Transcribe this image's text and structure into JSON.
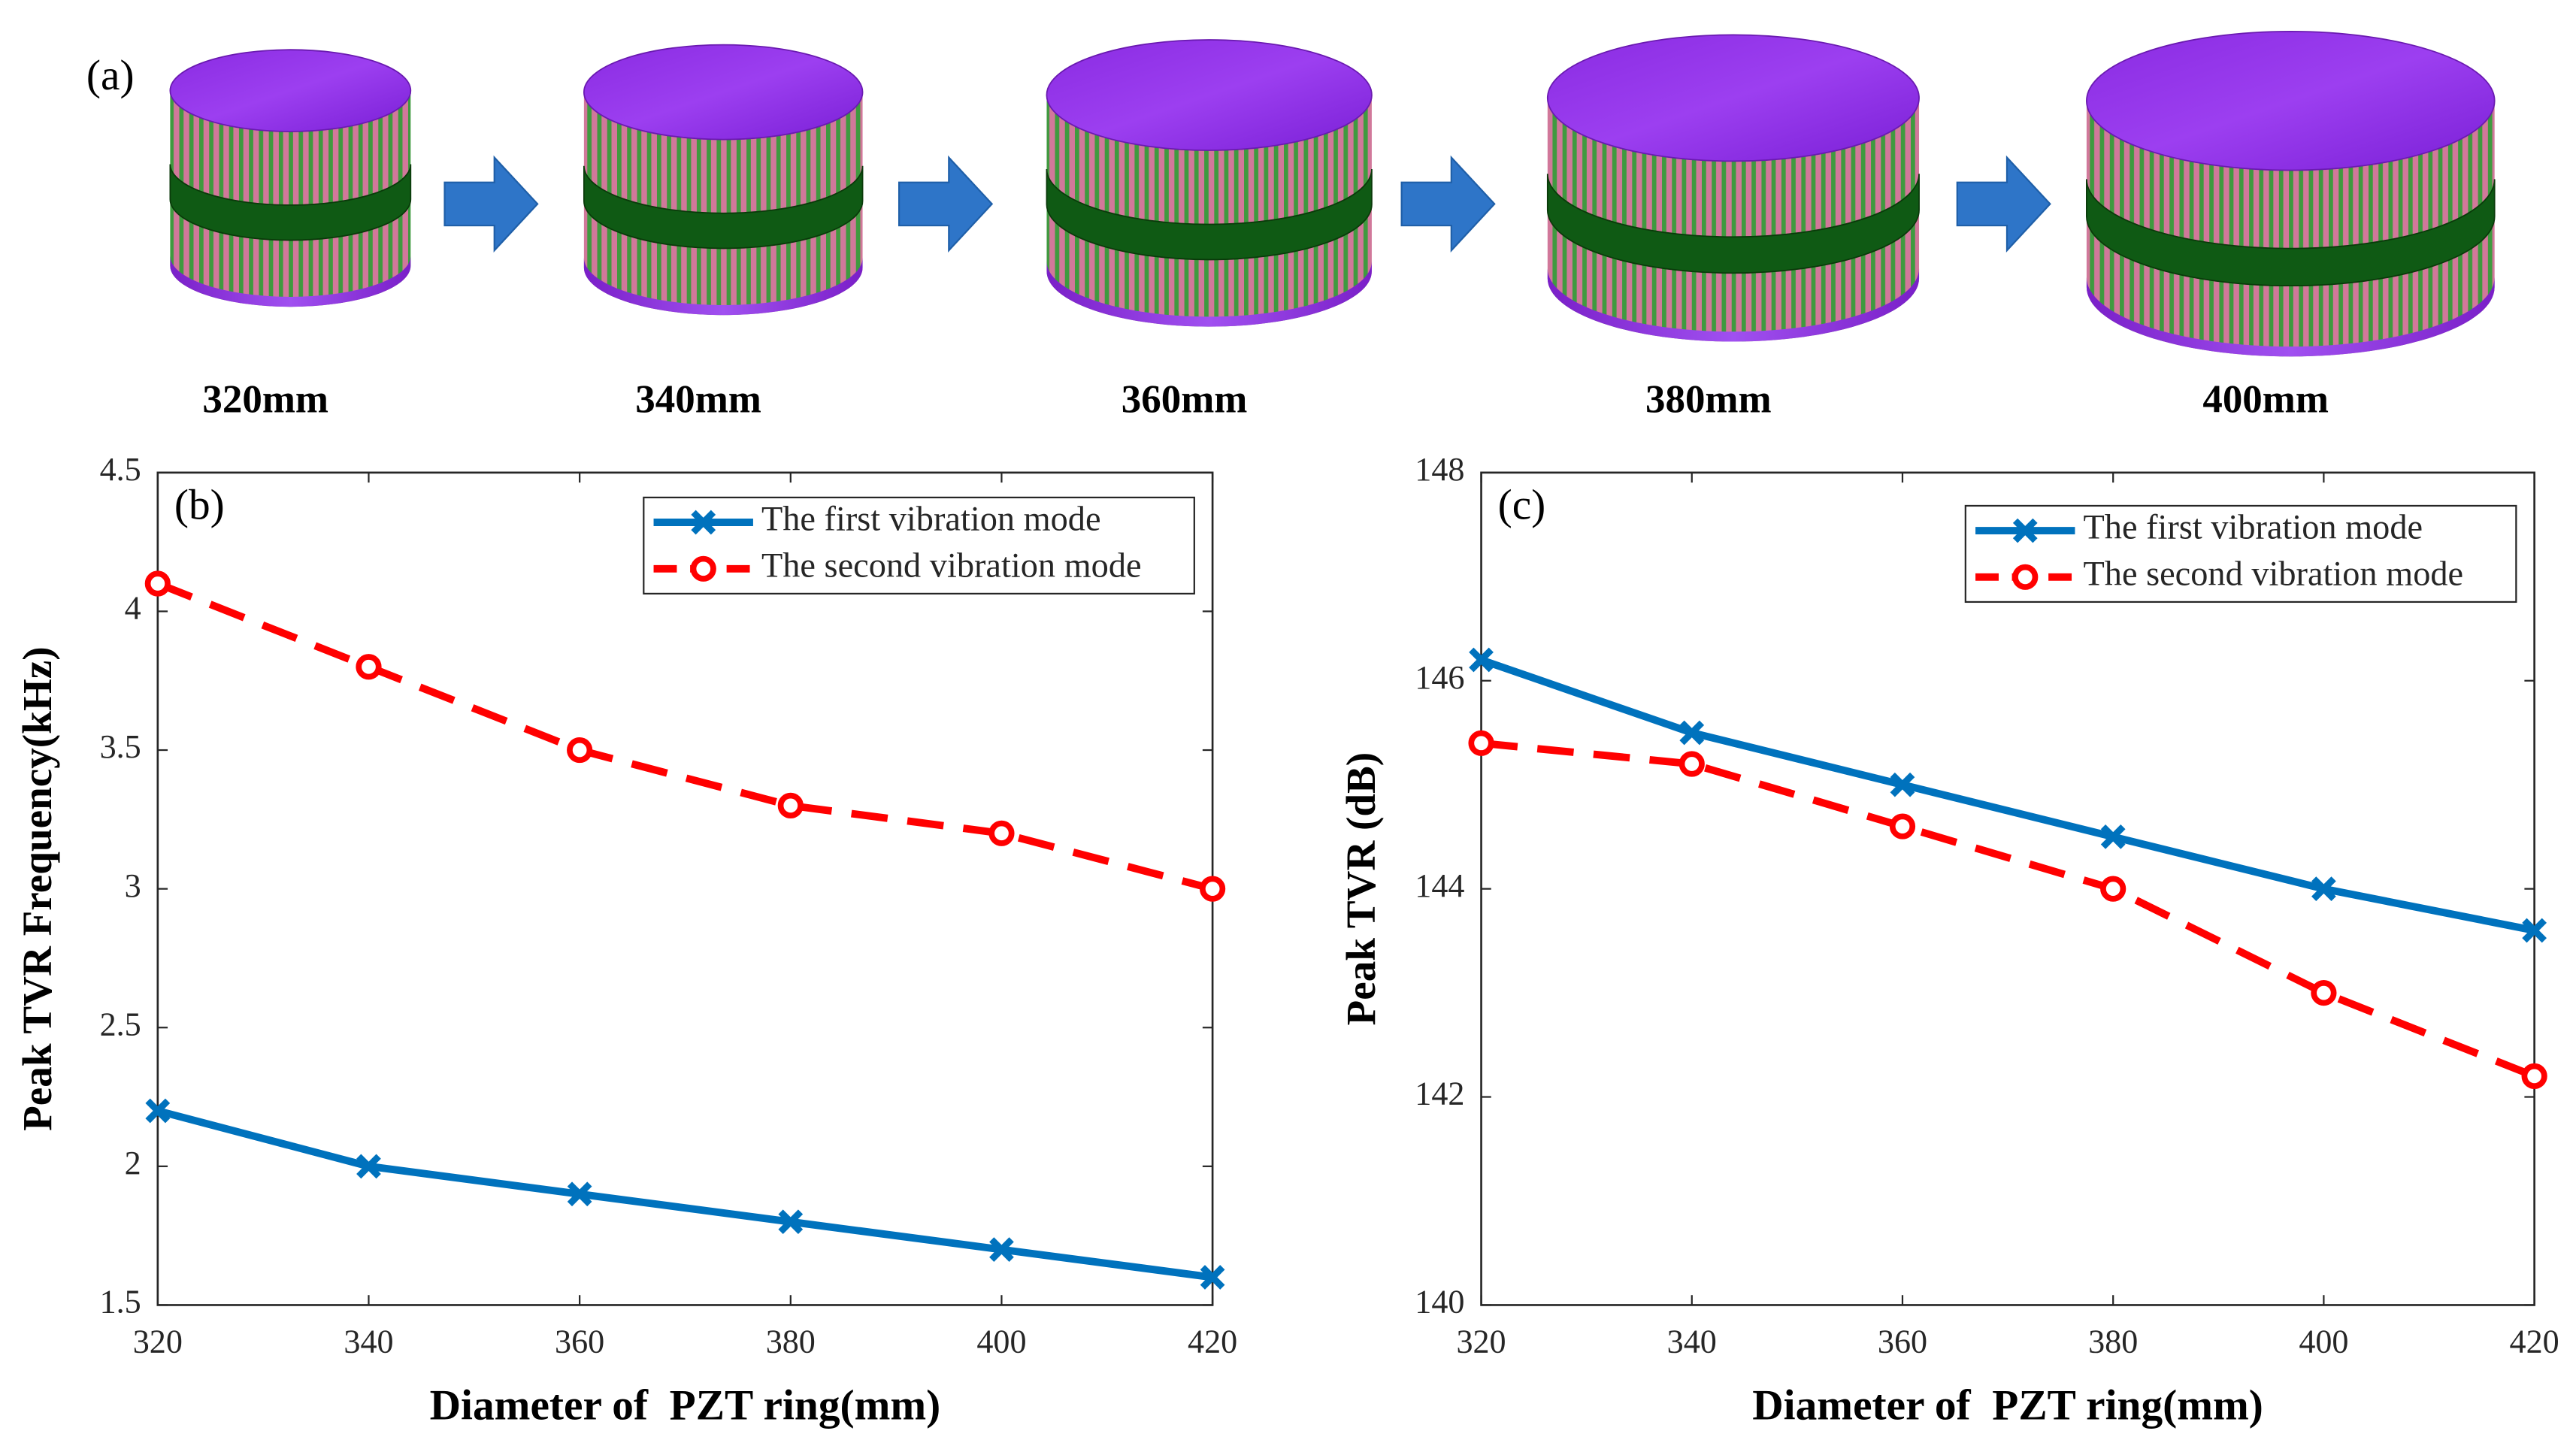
{
  "figure_a": {
    "panel_label": "(a)",
    "sizes": [
      "320mm",
      "340mm",
      "360mm",
      "380mm",
      "400mm"
    ]
  },
  "chart_data": [
    {
      "type": "line",
      "panel_label": "(b)",
      "x_label": "Diameter of  PZT ring(mm)",
      "y_label": "Peak TVR Frequency(kHz)",
      "x": [
        320,
        340,
        360,
        380,
        400,
        420
      ],
      "xlim": [
        320,
        420
      ],
      "xticks": [
        320,
        340,
        360,
        380,
        400,
        420
      ],
      "ylim": [
        1.5,
        4.5
      ],
      "yticks": [
        1.5,
        2,
        2.5,
        3,
        3.5,
        4,
        4.5
      ],
      "legend": "upper right",
      "series": [
        {
          "name": "The first vibration mode",
          "color": "#0072bd",
          "linestyle": "solid",
          "marker": "x",
          "values": [
            2.2,
            2.0,
            1.9,
            1.8,
            1.7,
            1.6
          ]
        },
        {
          "name": "The second vibration mode",
          "color": "#ff0000",
          "linestyle": "dashed",
          "marker": "o",
          "values": [
            4.1,
            3.8,
            3.5,
            3.3,
            3.2,
            3.0
          ]
        }
      ]
    },
    {
      "type": "line",
      "panel_label": "(c)",
      "x_label": "Diameter of  PZT ring(mm)",
      "y_label": "Peak TVR (dB)",
      "x": [
        320,
        340,
        360,
        380,
        400,
        420
      ],
      "xlim": [
        320,
        420
      ],
      "xticks": [
        320,
        340,
        360,
        380,
        400,
        420
      ],
      "ylim": [
        140,
        148
      ],
      "yticks": [
        140,
        142,
        144,
        146,
        148
      ],
      "legend": "upper right",
      "series": [
        {
          "name": "The first vibration mode",
          "color": "#0072bd",
          "linestyle": "solid",
          "marker": "x",
          "values": [
            146.2,
            145.5,
            145.0,
            144.5,
            144.0,
            143.6
          ]
        },
        {
          "name": "The second vibration mode",
          "color": "#ff0000",
          "linestyle": "dashed",
          "marker": "o",
          "values": [
            145.4,
            145.2,
            144.6,
            144.0,
            143.0,
            142.2
          ]
        }
      ]
    }
  ]
}
